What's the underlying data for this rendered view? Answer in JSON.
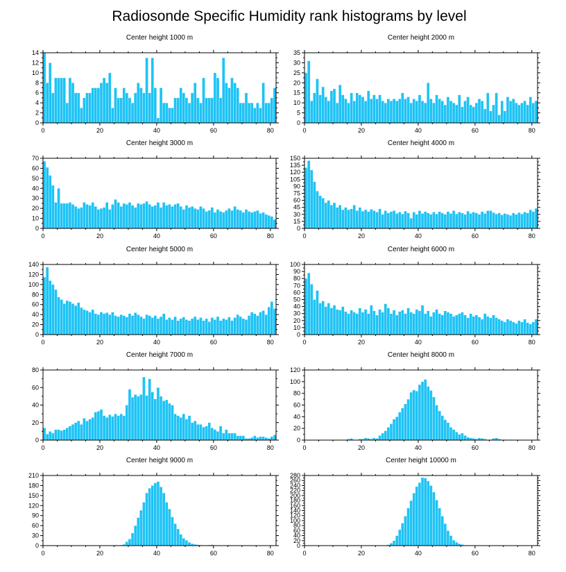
{
  "title": "Radiosonde Specific Humidity rank histograms by level",
  "colors": {
    "bar": "#1EC3F5",
    "axis": "#000000",
    "background": "#ffffff"
  },
  "chart_data": [
    {
      "type": "bar",
      "title": "Center height 1000 m",
      "x_ticks": [
        0,
        20,
        40,
        60,
        80
      ],
      "y_ticks": [
        0,
        2,
        4,
        6,
        8,
        10,
        12,
        14
      ],
      "xlim": [
        0,
        82
      ],
      "ylim": [
        0,
        14
      ],
      "values": [
        14,
        8,
        12,
        6,
        9,
        9,
        9,
        9,
        4,
        9,
        8,
        6,
        6,
        3,
        5,
        6,
        6,
        7,
        7,
        7,
        8,
        9,
        8,
        10,
        3,
        7,
        5,
        5,
        7,
        6,
        5,
        4,
        6,
        8,
        7,
        6,
        13,
        6,
        13,
        7,
        1,
        7,
        4,
        4,
        3,
        3,
        5,
        5,
        7,
        6,
        5,
        4,
        6,
        8,
        5,
        4,
        9,
        5,
        5,
        5,
        10,
        9,
        5,
        13,
        8,
        7,
        9,
        8,
        7,
        4,
        4,
        6,
        4,
        4,
        3,
        4,
        3,
        8,
        4,
        4,
        5,
        7
      ]
    },
    {
      "type": "bar",
      "title": "Center height 2000 m",
      "x_ticks": [
        0,
        20,
        40,
        60,
        80
      ],
      "y_ticks": [
        0,
        5,
        10,
        15,
        20,
        25,
        30,
        35
      ],
      "xlim": [
        0,
        82
      ],
      "ylim": [
        0,
        35
      ],
      "values": [
        25,
        31,
        11,
        15,
        22,
        14,
        18,
        13,
        11,
        16,
        17,
        10,
        19,
        14,
        12,
        10,
        15,
        11,
        15,
        14,
        13,
        11,
        16,
        12,
        14,
        12,
        14,
        11,
        10,
        12,
        11,
        12,
        11,
        12,
        15,
        12,
        13,
        10,
        12,
        11,
        14,
        11,
        10,
        20,
        12,
        10,
        14,
        12,
        11,
        9,
        13,
        11,
        10,
        9,
        14,
        8,
        11,
        13,
        9,
        8,
        10,
        12,
        11,
        7,
        15,
        6,
        9,
        15,
        4,
        11,
        6,
        13,
        11,
        12,
        10,
        9,
        10,
        11,
        9,
        13,
        10,
        11
      ]
    },
    {
      "type": "bar",
      "title": "Center height 3000 m",
      "x_ticks": [
        0,
        20,
        40,
        60,
        80
      ],
      "y_ticks": [
        0,
        10,
        20,
        30,
        40,
        50,
        60,
        70
      ],
      "xlim": [
        0,
        82
      ],
      "ylim": [
        0,
        70
      ],
      "values": [
        67,
        61,
        53,
        43,
        26,
        40,
        25,
        25,
        25,
        26,
        24,
        22,
        20,
        21,
        26,
        24,
        23,
        26,
        22,
        19,
        20,
        21,
        26,
        19,
        24,
        29,
        26,
        22,
        25,
        24,
        26,
        23,
        21,
        25,
        24,
        25,
        27,
        24,
        22,
        23,
        26,
        21,
        26,
        23,
        24,
        22,
        24,
        25,
        22,
        19,
        23,
        21,
        22,
        20,
        19,
        22,
        20,
        17,
        18,
        21,
        16,
        19,
        17,
        16,
        18,
        20,
        18,
        22,
        19,
        18,
        16,
        19,
        17,
        16,
        17,
        18,
        15,
        16,
        14,
        13,
        12,
        9
      ]
    },
    {
      "type": "bar",
      "title": "Center height 4000 m",
      "x_ticks": [
        0,
        20,
        40,
        60,
        80
      ],
      "y_ticks": [
        0,
        15,
        30,
        45,
        60,
        75,
        90,
        105,
        120,
        135,
        150
      ],
      "xlim": [
        0,
        82
      ],
      "ylim": [
        0,
        150
      ],
      "values": [
        130,
        145,
        125,
        100,
        80,
        70,
        65,
        55,
        60,
        50,
        55,
        45,
        50,
        40,
        45,
        40,
        42,
        50,
        38,
        45,
        37,
        40,
        36,
        41,
        38,
        35,
        42,
        30,
        38,
        33,
        36,
        38,
        32,
        35,
        31,
        37,
        33,
        22,
        35,
        30,
        38,
        32,
        36,
        33,
        30,
        35,
        31,
        36,
        33,
        30,
        36,
        32,
        38,
        31,
        35,
        33,
        30,
        37,
        32,
        35,
        33,
        30,
        36,
        32,
        38,
        38,
        34,
        31,
        33,
        29,
        32,
        30,
        28,
        33,
        30,
        34,
        31,
        35,
        33,
        40,
        36,
        43
      ]
    },
    {
      "type": "bar",
      "title": "Center height 5000 m",
      "x_ticks": [
        0,
        20,
        40,
        60,
        80
      ],
      "y_ticks": [
        0,
        20,
        40,
        60,
        80,
        100,
        120,
        140
      ],
      "xlim": [
        0,
        82
      ],
      "ylim": [
        0,
        140
      ],
      "values": [
        115,
        135,
        108,
        100,
        90,
        75,
        70,
        62,
        68,
        66,
        62,
        58,
        64,
        54,
        50,
        48,
        45,
        50,
        42,
        40,
        45,
        42,
        44,
        40,
        45,
        38,
        36,
        40,
        38,
        35,
        42,
        38,
        44,
        40,
        36,
        32,
        40,
        38,
        34,
        38,
        32,
        36,
        42,
        30,
        34,
        30,
        36,
        28,
        32,
        35,
        30,
        28,
        32,
        36,
        30,
        34,
        28,
        32,
        26,
        34,
        30,
        36,
        28,
        32,
        30,
        35,
        28,
        34,
        40,
        36,
        32,
        30,
        38,
        45,
        42,
        38,
        45,
        48,
        40,
        55,
        66,
        52
      ]
    },
    {
      "type": "bar",
      "title": "Center height 6000 m",
      "x_ticks": [
        0,
        20,
        40,
        60,
        80
      ],
      "y_ticks": [
        0,
        10,
        20,
        30,
        40,
        50,
        60,
        70,
        80,
        90,
        100
      ],
      "xlim": [
        0,
        82
      ],
      "ylim": [
        0,
        100
      ],
      "values": [
        80,
        88,
        72,
        50,
        63,
        45,
        48,
        40,
        45,
        38,
        42,
        36,
        35,
        40,
        33,
        30,
        35,
        32,
        30,
        38,
        32,
        36,
        30,
        42,
        34,
        28,
        36,
        32,
        44,
        38,
        30,
        35,
        28,
        33,
        35,
        30,
        38,
        32,
        30,
        36,
        34,
        42,
        30,
        34,
        26,
        32,
        36,
        30,
        28,
        34,
        32,
        30,
        26,
        28,
        30,
        32,
        28,
        24,
        30,
        26,
        28,
        25,
        22,
        30,
        26,
        24,
        28,
        24,
        22,
        20,
        18,
        22,
        20,
        18,
        16,
        20,
        18,
        22,
        17,
        15,
        18,
        22
      ]
    },
    {
      "type": "bar",
      "title": "Center height 7000 m",
      "x_ticks": [
        0,
        20,
        40,
        60,
        80
      ],
      "y_ticks": [
        0,
        20,
        40,
        60,
        80
      ],
      "xlim": [
        0,
        82
      ],
      "ylim": [
        0,
        80
      ],
      "values": [
        14,
        7,
        10,
        8,
        12,
        12,
        11,
        12,
        14,
        16,
        18,
        20,
        22,
        18,
        25,
        22,
        24,
        26,
        32,
        33,
        35,
        28,
        26,
        29,
        27,
        30,
        28,
        30,
        28,
        40,
        58,
        49,
        52,
        50,
        52,
        72,
        51,
        70,
        55,
        47,
        60,
        50,
        45,
        46,
        42,
        40,
        30,
        28,
        26,
        30,
        24,
        28,
        20,
        22,
        18,
        18,
        15,
        16,
        20,
        14,
        12,
        10,
        16,
        8,
        12,
        8,
        8,
        8,
        5,
        5,
        5,
        2,
        2,
        3,
        5,
        3,
        4,
        4,
        3,
        2,
        4,
        6
      ]
    },
    {
      "type": "bar",
      "title": "Center height 8000 m",
      "x_ticks": [
        0,
        20,
        40,
        60,
        80
      ],
      "y_ticks": [
        0,
        20,
        40,
        60,
        80,
        100,
        120
      ],
      "xlim": [
        0,
        82
      ],
      "ylim": [
        0,
        120
      ],
      "values": [
        0,
        0,
        0,
        0,
        0,
        0,
        0,
        0,
        0,
        0,
        0,
        0,
        0,
        0,
        0,
        2,
        3,
        1,
        0,
        2,
        2,
        4,
        3,
        2,
        4,
        3,
        8,
        12,
        16,
        22,
        28,
        36,
        40,
        48,
        55,
        62,
        70,
        82,
        86,
        84,
        95,
        100,
        104,
        92,
        85,
        74,
        60,
        50,
        42,
        35,
        30,
        22,
        18,
        14,
        10,
        12,
        8,
        5,
        4,
        3,
        2,
        4,
        3,
        2,
        0,
        1,
        3,
        4,
        2,
        1,
        1,
        0,
        1,
        0,
        0,
        0,
        0,
        0,
        0,
        0,
        0,
        0
      ]
    },
    {
      "type": "bar",
      "title": "Center height 9000 m",
      "x_ticks": [
        0,
        20,
        40,
        60,
        80
      ],
      "y_ticks": [
        0,
        30,
        60,
        90,
        120,
        150,
        180,
        210
      ],
      "xlim": [
        0,
        82
      ],
      "ylim": [
        0,
        210
      ],
      "values": [
        0,
        0,
        0,
        0,
        0,
        0,
        0,
        0,
        0,
        0,
        0,
        0,
        0,
        0,
        0,
        0,
        0,
        0,
        0,
        0,
        0,
        0,
        0,
        0,
        0,
        2,
        0,
        2,
        4,
        12,
        20,
        38,
        60,
        84,
        106,
        130,
        158,
        172,
        180,
        188,
        192,
        176,
        158,
        130,
        110,
        86,
        66,
        50,
        34,
        22,
        16,
        10,
        6,
        4,
        3,
        2,
        1,
        1,
        2,
        3,
        1,
        0,
        1,
        0,
        0,
        2,
        0,
        0,
        0,
        0,
        0,
        0,
        0,
        0,
        0,
        0,
        0,
        0,
        0,
        0,
        0,
        0
      ]
    },
    {
      "type": "bar",
      "title": "Center height 10000 m",
      "x_ticks": [
        0,
        20,
        40,
        60,
        80
      ],
      "y_ticks": [
        0,
        20,
        40,
        60,
        80,
        100,
        120,
        140,
        160,
        180,
        200,
        220,
        240,
        260,
        280
      ],
      "xlim": [
        0,
        82
      ],
      "ylim": [
        0,
        280
      ],
      "values": [
        0,
        0,
        0,
        0,
        0,
        0,
        0,
        0,
        0,
        0,
        0,
        0,
        0,
        0,
        0,
        0,
        0,
        0,
        0,
        0,
        0,
        0,
        0,
        0,
        0,
        0,
        0,
        0,
        0,
        4,
        10,
        20,
        40,
        64,
        90,
        118,
        150,
        180,
        210,
        236,
        252,
        272,
        270,
        258,
        240,
        214,
        182,
        150,
        118,
        88,
        60,
        40,
        22,
        14,
        8,
        5,
        2,
        1,
        1,
        0,
        0,
        0,
        0,
        0,
        0,
        0,
        0,
        0,
        0,
        0,
        0,
        0,
        0,
        0,
        0,
        0,
        0,
        0,
        0,
        0,
        0,
        0
      ]
    }
  ]
}
